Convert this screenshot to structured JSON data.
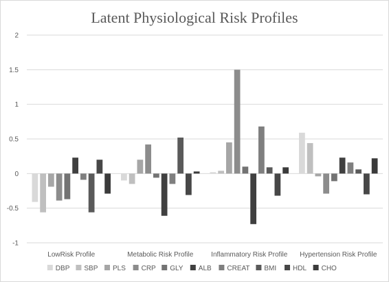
{
  "chart_data": {
    "type": "bar",
    "title": "Latent Physiological Risk Profiles",
    "xlabel": "",
    "ylabel": "",
    "ylim": [
      -1,
      2
    ],
    "yticks": [
      "-1",
      "-0.5",
      "0",
      "0.5",
      "1",
      "1.5",
      "2"
    ],
    "grid": true,
    "legend_position": "bottom",
    "categories": [
      "LowRisk Profile",
      "Metabolic Risk Profile",
      "Inflammatory Risk Profile",
      "Hypertension Risk Profile"
    ],
    "series": [
      {
        "name": "DBP",
        "color": "#d9d9d9",
        "values": [
          -0.41,
          -0.1,
          0.02,
          0.59
        ]
      },
      {
        "name": "SBP",
        "color": "#bfbfbf",
        "values": [
          -0.56,
          -0.15,
          0.04,
          0.44
        ]
      },
      {
        "name": "PLS",
        "color": "#a6a6a6",
        "values": [
          -0.19,
          0.2,
          0.45,
          -0.04
        ]
      },
      {
        "name": "CRP",
        "color": "#8c8c8c",
        "values": [
          -0.39,
          0.42,
          1.5,
          -0.29
        ]
      },
      {
        "name": "GLY",
        "color": "#737373",
        "values": [
          -0.37,
          -0.06,
          0.1,
          -0.11
        ]
      },
      {
        "name": "ALB",
        "color": "#404040",
        "values": [
          0.23,
          -0.61,
          -0.73,
          0.23
        ]
      },
      {
        "name": "CREAT",
        "color": "#7f7f7f",
        "values": [
          -0.09,
          -0.15,
          0.68,
          0.16
        ]
      },
      {
        "name": "BMI",
        "color": "#5a5a5a",
        "values": [
          -0.56,
          0.52,
          0.09,
          0.06
        ]
      },
      {
        "name": "HDL",
        "color": "#474747",
        "values": [
          0.2,
          -0.31,
          -0.32,
          -0.3
        ]
      },
      {
        "name": "CHO",
        "color": "#3b3b3b",
        "values": [
          -0.29,
          0.03,
          0.09,
          0.22
        ]
      }
    ]
  }
}
